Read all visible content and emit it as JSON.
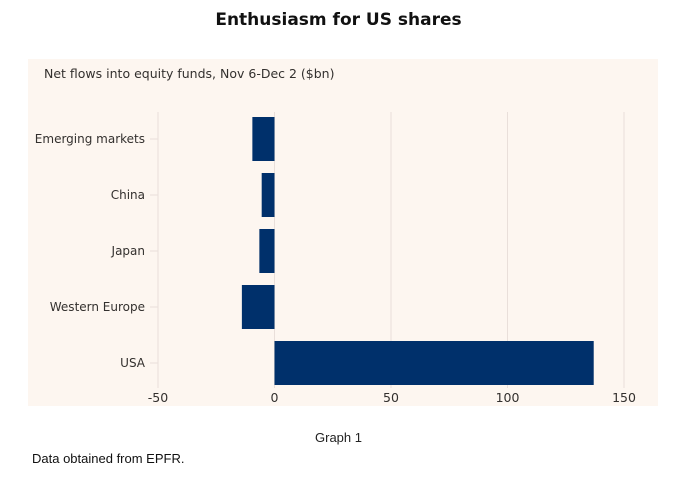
{
  "title": "Enthusiasm for US shares",
  "caption": "Graph 1",
  "source_note": "Data obtained from EPFR.",
  "colors": {
    "bar": "#00306b",
    "panel_bg": "#fdf6f0",
    "grid": "#e9dfda",
    "text": "#33302e"
  },
  "chart_data": {
    "type": "bar",
    "orientation": "horizontal",
    "title": "Enthusiasm for US shares",
    "subtitle": "Net flows into equity funds, Nov 6-Dec 2 ($bn)",
    "categories": [
      "Emerging markets",
      "China",
      "Japan",
      "Western Europe",
      "USA"
    ],
    "values": [
      -9.5,
      -5.5,
      -6.5,
      -14,
      137
    ],
    "xlabel": "",
    "ylabel": "",
    "xlim": [
      -50,
      165
    ],
    "xticks": [
      -50,
      0,
      50,
      100,
      150
    ],
    "xtick_labels": [
      "-50",
      "0",
      "50",
      "100",
      "150"
    ],
    "grid": true,
    "legend": "none"
  }
}
